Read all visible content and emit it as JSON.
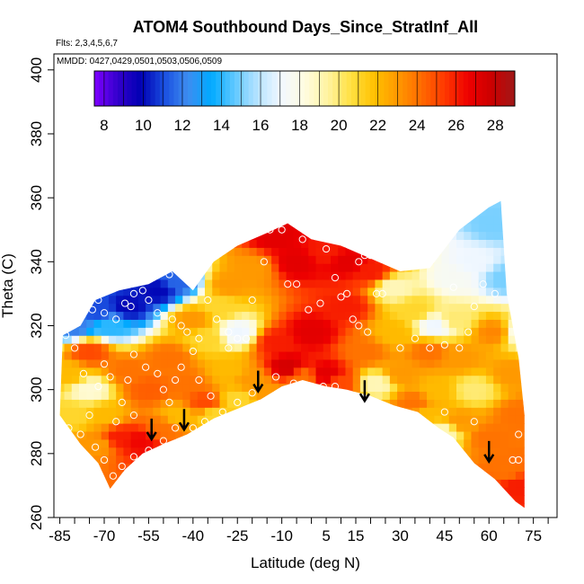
{
  "chart_data": {
    "type": "heatmap",
    "title": "ATOM4 Southbound Days_Since_StratInf_All",
    "subtitle_flights": "Flts: 2,3,4,5,6,7",
    "subtitle_dates": "MMDD: 0427,0429,0501,0503,0506,0509",
    "xlabel": "Latitude (deg N)",
    "ylabel": "Theta (C)",
    "xlim": [
      -87,
      83
    ],
    "ylim": [
      260,
      405
    ],
    "x_ticks": [
      -85,
      -70,
      -55,
      -40,
      -25,
      -10,
      5,
      15,
      30,
      45,
      60,
      75
    ],
    "x_ticks_minor_step": 5,
    "y_ticks": [
      260,
      280,
      300,
      320,
      340,
      360,
      380,
      400
    ],
    "colorbar": {
      "min": 7.5,
      "max": 29,
      "labels": [
        8,
        10,
        12,
        14,
        16,
        18,
        20,
        22,
        24,
        26,
        28
      ],
      "colors": [
        "#7f00ff",
        "#3300cc",
        "#0000b3",
        "#1a4fe0",
        "#3d8cf0",
        "#00aaff",
        "#60c8ff",
        "#b8e4ff",
        "#f2f8ff",
        "#fffce0",
        "#fff3a0",
        "#ffe040",
        "#ffc000",
        "#ff9800",
        "#ff6a00",
        "#ff3800",
        "#ee0000",
        "#cc0000",
        "#a01818"
      ]
    },
    "boundary_top": [
      [
        -85,
        292
      ],
      [
        -84,
        317
      ],
      [
        -78,
        320
      ],
      [
        -73,
        328
      ],
      [
        -65,
        331
      ],
      [
        -55,
        333
      ],
      [
        -47,
        337
      ],
      [
        -40,
        331
      ],
      [
        -33,
        340
      ],
      [
        -25,
        345
      ],
      [
        -15,
        349
      ],
      [
        -8,
        352
      ],
      [
        0,
        347
      ],
      [
        10,
        345
      ],
      [
        20,
        341
      ],
      [
        30,
        337
      ],
      [
        40,
        338
      ],
      [
        50,
        350
      ],
      [
        60,
        357
      ],
      [
        64,
        359
      ],
      [
        66,
        330
      ],
      [
        70,
        310
      ],
      [
        72,
        292
      ]
    ],
    "boundary_bottom": [
      [
        72,
        263
      ],
      [
        69,
        265
      ],
      [
        62,
        272
      ],
      [
        55,
        277
      ],
      [
        48,
        285
      ],
      [
        43,
        288
      ],
      [
        36,
        293
      ],
      [
        28,
        295
      ],
      [
        20,
        298
      ],
      [
        12,
        300
      ],
      [
        5,
        301
      ],
      [
        -3,
        303
      ],
      [
        -10,
        301
      ],
      [
        -17,
        297
      ],
      [
        -25,
        294
      ],
      [
        -33,
        291
      ],
      [
        -42,
        286
      ],
      [
        -50,
        283
      ],
      [
        -57,
        280
      ],
      [
        -63,
        275
      ],
      [
        -68,
        269
      ],
      [
        -72,
        277
      ],
      [
        -78,
        283
      ],
      [
        -85,
        292
      ]
    ],
    "control_points": [
      {
        "lat": -80,
        "theta": 320,
        "v": 12
      },
      {
        "lat": -72,
        "theta": 325,
        "v": 11
      },
      {
        "lat": -62,
        "theta": 326,
        "v": 10
      },
      {
        "lat": -52,
        "theta": 331,
        "v": 10
      },
      {
        "lat": -45,
        "theta": 334,
        "v": 11.5
      },
      {
        "lat": -68,
        "theta": 320,
        "v": 14
      },
      {
        "lat": -40,
        "theta": 322,
        "v": 23
      },
      {
        "lat": -31,
        "theta": 326,
        "v": 21
      },
      {
        "lat": -35,
        "theta": 316,
        "v": 21
      },
      {
        "lat": -25,
        "theta": 318,
        "v": 17
      },
      {
        "lat": -28,
        "theta": 333,
        "v": 23
      },
      {
        "lat": -20,
        "theta": 338,
        "v": 23
      },
      {
        "lat": -12,
        "theta": 348,
        "v": 27
      },
      {
        "lat": -5,
        "theta": 340,
        "v": 27
      },
      {
        "lat": 5,
        "theta": 343,
        "v": 26
      },
      {
        "lat": 12,
        "theta": 340,
        "v": 27
      },
      {
        "lat": 20,
        "theta": 337,
        "v": 26
      },
      {
        "lat": 28,
        "theta": 332,
        "v": 19
      },
      {
        "lat": 35,
        "theta": 325,
        "v": 21
      },
      {
        "lat": 42,
        "theta": 320,
        "v": 17
      },
      {
        "lat": 48,
        "theta": 335,
        "v": 17.5
      },
      {
        "lat": 55,
        "theta": 340,
        "v": 17
      },
      {
        "lat": 62,
        "theta": 352,
        "v": 15
      },
      {
        "lat": 66,
        "theta": 335,
        "v": 15
      },
      {
        "lat": 70,
        "theta": 318,
        "v": 18
      },
      {
        "lat": -82,
        "theta": 305,
        "v": 22
      },
      {
        "lat": -75,
        "theta": 312,
        "v": 25
      },
      {
        "lat": -75,
        "theta": 300,
        "v": 18.5
      },
      {
        "lat": -70,
        "theta": 292,
        "v": 22
      },
      {
        "lat": -62,
        "theta": 306,
        "v": 24
      },
      {
        "lat": -55,
        "theta": 300,
        "v": 24.5
      },
      {
        "lat": -48,
        "theta": 310,
        "v": 24
      },
      {
        "lat": -42,
        "theta": 302,
        "v": 24
      },
      {
        "lat": -36,
        "theta": 296,
        "v": 25
      },
      {
        "lat": -28,
        "theta": 306,
        "v": 22
      },
      {
        "lat": -20,
        "theta": 303,
        "v": 23
      },
      {
        "lat": -12,
        "theta": 315,
        "v": 26
      },
      {
        "lat": -8,
        "theta": 307,
        "v": 27.5
      },
      {
        "lat": 0,
        "theta": 318,
        "v": 27
      },
      {
        "lat": 5,
        "theta": 305,
        "v": 27
      },
      {
        "lat": 12,
        "theta": 326,
        "v": 26
      },
      {
        "lat": 18,
        "theta": 312,
        "v": 24
      },
      {
        "lat": 22,
        "theta": 302,
        "v": 19
      },
      {
        "lat": 28,
        "theta": 318,
        "v": 22
      },
      {
        "lat": 30,
        "theta": 305,
        "v": 23
      },
      {
        "lat": 35,
        "theta": 296,
        "v": 24
      },
      {
        "lat": 40,
        "theta": 312,
        "v": 24
      },
      {
        "lat": 48,
        "theta": 322,
        "v": 20
      },
      {
        "lat": 50,
        "theta": 310,
        "v": 23
      },
      {
        "lat": 42,
        "theta": 300,
        "v": 22
      },
      {
        "lat": 55,
        "theta": 300,
        "v": 20
      },
      {
        "lat": 62,
        "theta": 318,
        "v": 23.5
      },
      {
        "lat": 68,
        "theta": 305,
        "v": 23
      },
      {
        "lat": 70,
        "theta": 292,
        "v": 24
      },
      {
        "lat": 60,
        "theta": 285,
        "v": 24
      },
      {
        "lat": 50,
        "theta": 290,
        "v": 23
      },
      {
        "lat": 40,
        "theta": 293,
        "v": 22
      },
      {
        "lat": -80,
        "theta": 292,
        "v": 21
      },
      {
        "lat": -72,
        "theta": 283,
        "v": 23
      },
      {
        "lat": -65,
        "theta": 285,
        "v": 26
      },
      {
        "lat": -58,
        "theta": 284,
        "v": 26.5
      },
      {
        "lat": -50,
        "theta": 288,
        "v": 24
      },
      {
        "lat": -45,
        "theta": 292,
        "v": 22
      },
      {
        "lat": -33,
        "theta": 292,
        "v": 21
      },
      {
        "lat": -25,
        "theta": 297,
        "v": 21
      },
      {
        "lat": -15,
        "theta": 299,
        "v": 23
      },
      {
        "lat": -3,
        "theta": 304,
        "v": 24
      },
      {
        "lat": 10,
        "theta": 302,
        "v": 25
      },
      {
        "lat": 70,
        "theta": 270,
        "v": 26
      },
      {
        "lat": 66,
        "theta": 275,
        "v": 24
      },
      {
        "lat": 45,
        "theta": 287,
        "v": 19
      }
    ],
    "sample_points": [
      [
        -83,
        317
      ],
      [
        -74,
        325
      ],
      [
        -72,
        328
      ],
      [
        -70,
        324
      ],
      [
        -66,
        322
      ],
      [
        -63,
        327
      ],
      [
        -61,
        326
      ],
      [
        -60,
        330
      ],
      [
        -57,
        331
      ],
      [
        -55,
        328
      ],
      [
        -52,
        324
      ],
      [
        -48,
        336
      ],
      [
        -47,
        322
      ],
      [
        -44,
        320
      ],
      [
        -42,
        318
      ],
      [
        -38,
        316
      ],
      [
        -35,
        328
      ],
      [
        -32,
        322
      ],
      [
        -28,
        318
      ],
      [
        -25,
        316
      ],
      [
        -22,
        316
      ],
      [
        -20,
        328
      ],
      [
        -16,
        340
      ],
      [
        -14,
        350
      ],
      [
        -10,
        350
      ],
      [
        -8,
        333
      ],
      [
        -5,
        333
      ],
      [
        -3,
        347
      ],
      [
        -1,
        325
      ],
      [
        3,
        327
      ],
      [
        5,
        344
      ],
      [
        8,
        335
      ],
      [
        10,
        329
      ],
      [
        12,
        330
      ],
      [
        14,
        322
      ],
      [
        16,
        340
      ],
      [
        18,
        342
      ],
      [
        20,
        342
      ],
      [
        22,
        330
      ],
      [
        19,
        318
      ],
      [
        16,
        320
      ],
      [
        24,
        330
      ],
      [
        30,
        313
      ],
      [
        35,
        316
      ],
      [
        40,
        313
      ],
      [
        45,
        314
      ],
      [
        48,
        332
      ],
      [
        50,
        313
      ],
      [
        53,
        318
      ],
      [
        55,
        326
      ],
      [
        58,
        333
      ],
      [
        62,
        330
      ],
      [
        66,
        357
      ],
      [
        -80,
        313
      ],
      [
        -77,
        305
      ],
      [
        -72,
        301
      ],
      [
        -70,
        308
      ],
      [
        -68,
        304
      ],
      [
        -64,
        296
      ],
      [
        -62,
        303
      ],
      [
        -60,
        311
      ],
      [
        -56,
        307
      ],
      [
        -52,
        305
      ],
      [
        -50,
        300
      ],
      [
        -48,
        296
      ],
      [
        -46,
        303
      ],
      [
        -44,
        307
      ],
      [
        -40,
        312
      ],
      [
        -38,
        303
      ],
      [
        -34,
        298
      ],
      [
        -30,
        293
      ],
      [
        -28,
        313
      ],
      [
        -25,
        296
      ],
      [
        -20,
        299
      ],
      [
        -12,
        304
      ],
      [
        -6,
        302
      ],
      [
        0,
        301
      ],
      [
        4,
        301
      ],
      [
        8,
        301
      ],
      [
        20,
        296
      ],
      [
        30,
        291
      ],
      [
        38,
        287
      ],
      [
        45,
        293
      ],
      [
        55,
        290
      ],
      [
        68,
        278
      ],
      [
        70,
        286
      ],
      [
        70,
        278
      ],
      [
        -82,
        288
      ],
      [
        -78,
        286
      ],
      [
        -73,
        282
      ],
      [
        -70,
        278
      ],
      [
        -67,
        273
      ],
      [
        -64,
        276
      ],
      [
        -60,
        279
      ],
      [
        -55,
        281
      ],
      [
        -50,
        284
      ],
      [
        -46,
        288
      ],
      [
        -40,
        288
      ],
      [
        -36,
        290
      ],
      [
        -60,
        292
      ],
      [
        -75,
        292
      ],
      [
        -66,
        290
      ]
    ],
    "arrows": [
      [
        -54,
        287
      ],
      [
        -43,
        290
      ],
      [
        -18,
        302
      ],
      [
        18,
        299
      ],
      [
        60,
        280
      ]
    ]
  }
}
